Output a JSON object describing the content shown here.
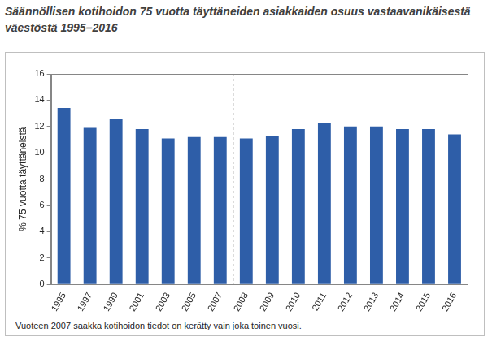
{
  "chart_data": {
    "type": "bar",
    "title": "Säännöllisen kotihoidon 75 vuotta täyttäneiden asiakkaiden osuus vastaavanikäisestä väestöstä 1995–2016",
    "y_label": "% 75 vuotta täyttäneistä",
    "annotations": [
      "Vuoteen 2007 saakka kotihoidon tiedot on kerätty vain joka toinen vuosi."
    ],
    "categories": [
      "1995",
      "1997",
      "1999",
      "2001",
      "2003",
      "2005",
      "2007",
      "2008",
      "2009",
      "2010",
      "2011",
      "2012",
      "2013",
      "2014",
      "2015",
      "2016"
    ],
    "values": [
      13.4,
      11.9,
      12.6,
      11.8,
      11.1,
      11.2,
      11.2,
      11.1,
      11.3,
      11.8,
      12.3,
      12.0,
      12.0,
      11.8,
      11.8,
      11.4
    ],
    "color": "#2e5ea8",
    "ylim": [
      0,
      16
    ],
    "yticks": [
      0,
      2,
      4,
      6,
      8,
      10,
      12,
      14,
      16
    ],
    "grid": false
  }
}
